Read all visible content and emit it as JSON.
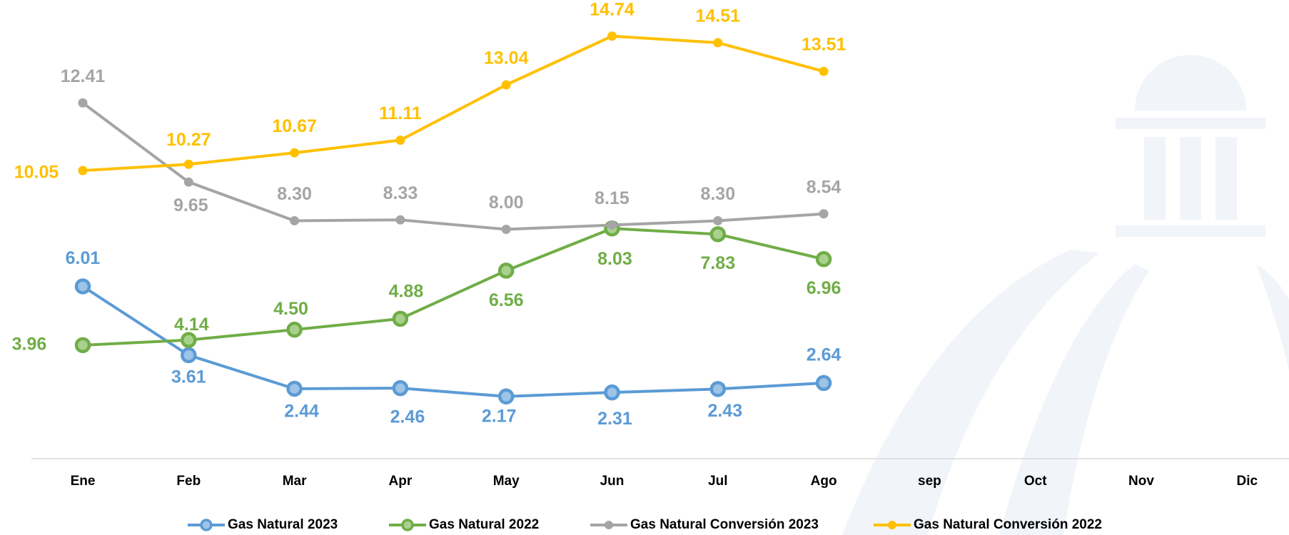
{
  "chart_data": {
    "type": "line",
    "categories": [
      "Ene",
      "Feb",
      "Mar",
      "Apr",
      "May",
      "Jun",
      "Jul",
      "Ago",
      "sep",
      "Oct",
      "Nov",
      "Dic"
    ],
    "ylim": [
      0,
      16
    ],
    "series": [
      {
        "name": "Gas Natural 2023",
        "color": "#5b9bd5",
        "values": [
          6.01,
          3.61,
          2.44,
          2.46,
          2.17,
          2.31,
          2.43,
          2.64,
          null,
          null,
          null,
          null
        ],
        "value_labels": [
          "6.01",
          "3.61",
          "2.44",
          "2.46",
          "2.17",
          "2.31",
          "2.43",
          "2.64",
          null,
          null,
          null,
          null
        ]
      },
      {
        "name": "Gas Natural 2022",
        "color": "#70ad47",
        "values": [
          3.96,
          4.14,
          4.5,
          4.88,
          6.56,
          8.03,
          7.83,
          6.96,
          null,
          null,
          null,
          null
        ],
        "value_labels": [
          "3.96",
          "4.14",
          "4.50",
          "4.88",
          "6.56",
          "8.03",
          "7.83",
          "6.96",
          null,
          null,
          null,
          null
        ]
      },
      {
        "name": "Gas Natural Conversión 2023",
        "color": "#a5a5a5",
        "values": [
          12.41,
          9.65,
          8.3,
          8.33,
          8.0,
          8.15,
          8.3,
          8.54,
          null,
          null,
          null,
          null
        ],
        "value_labels": [
          "12.41",
          "9.65",
          "8.30",
          "8.33",
          "8.00",
          "8.15",
          "8.30",
          "8.54",
          null,
          null,
          null,
          null
        ]
      },
      {
        "name": "Gas Natural Conversión 2022",
        "color": "#ffc000",
        "values": [
          10.05,
          10.27,
          10.67,
          11.11,
          13.04,
          14.74,
          14.51,
          13.51,
          null,
          null,
          null,
          null
        ],
        "value_labels": [
          "10.05",
          "10.27",
          "10.67",
          "11.11",
          "13.04",
          "14.74",
          "14.51",
          "13.51",
          null,
          null,
          null,
          null
        ]
      }
    ]
  }
}
